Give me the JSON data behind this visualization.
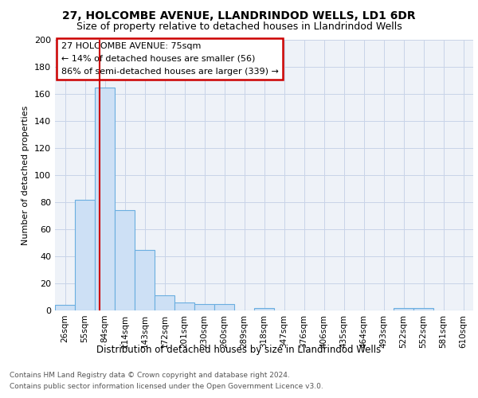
{
  "title1": "27, HOLCOMBE AVENUE, LLANDRINDOD WELLS, LD1 6DR",
  "title2": "Size of property relative to detached houses in Llandrindod Wells",
  "xlabel": "Distribution of detached houses by size in Llandrindod Wells",
  "ylabel": "Number of detached properties",
  "footer1": "Contains HM Land Registry data © Crown copyright and database right 2024.",
  "footer2": "Contains public sector information licensed under the Open Government Licence v3.0.",
  "annotation_title": "27 HOLCOMBE AVENUE: 75sqm",
  "annotation_line2": "← 14% of detached houses are smaller (56)",
  "annotation_line3": "86% of semi-detached houses are larger (339) →",
  "bar_labels": [
    "26sqm",
    "55sqm",
    "84sqm",
    "114sqm",
    "143sqm",
    "172sqm",
    "201sqm",
    "230sqm",
    "260sqm",
    "289sqm",
    "318sqm",
    "347sqm",
    "376sqm",
    "406sqm",
    "435sqm",
    "464sqm",
    "493sqm",
    "522sqm",
    "552sqm",
    "581sqm",
    "610sqm"
  ],
  "bar_values": [
    4,
    82,
    165,
    74,
    45,
    11,
    6,
    5,
    5,
    0,
    2,
    0,
    0,
    0,
    0,
    0,
    0,
    2,
    2,
    0,
    0
  ],
  "bar_color": "#cde0f5",
  "bar_edge_color": "#6aaee0",
  "highlight_line_color": "#cc0000",
  "red_line_x": 1.72,
  "ylim": [
    0,
    200
  ],
  "yticks": [
    0,
    20,
    40,
    60,
    80,
    100,
    120,
    140,
    160,
    180,
    200
  ],
  "annotation_box_color": "#ffffff",
  "annotation_box_edge": "#cc0000",
  "bg_color": "#eef2f8",
  "grid_color": "#c8d4e8",
  "title1_fontsize": 10,
  "title2_fontsize": 9
}
